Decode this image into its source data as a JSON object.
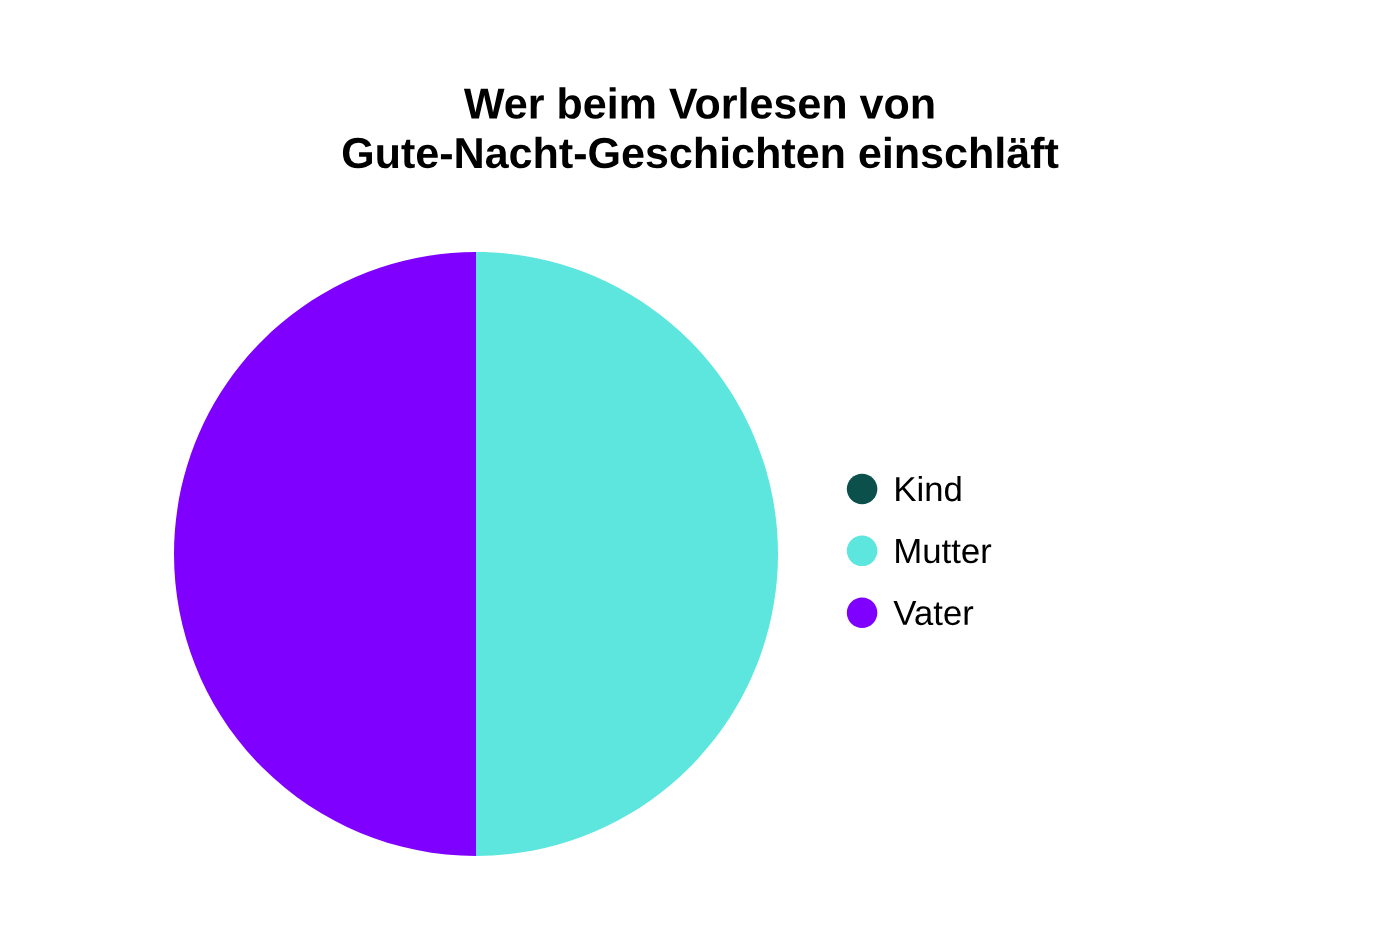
{
  "chart_data": {
    "type": "pie",
    "title": "Wer beim Vorlesen von\nGute-Nacht-Geschichten einschläft",
    "categories": [
      "Kind",
      "Mutter",
      "Vater"
    ],
    "values": [
      0,
      50,
      50
    ],
    "colors": [
      "#0b504b",
      "#5ce6de",
      "#8000ff"
    ],
    "legend": "right"
  }
}
